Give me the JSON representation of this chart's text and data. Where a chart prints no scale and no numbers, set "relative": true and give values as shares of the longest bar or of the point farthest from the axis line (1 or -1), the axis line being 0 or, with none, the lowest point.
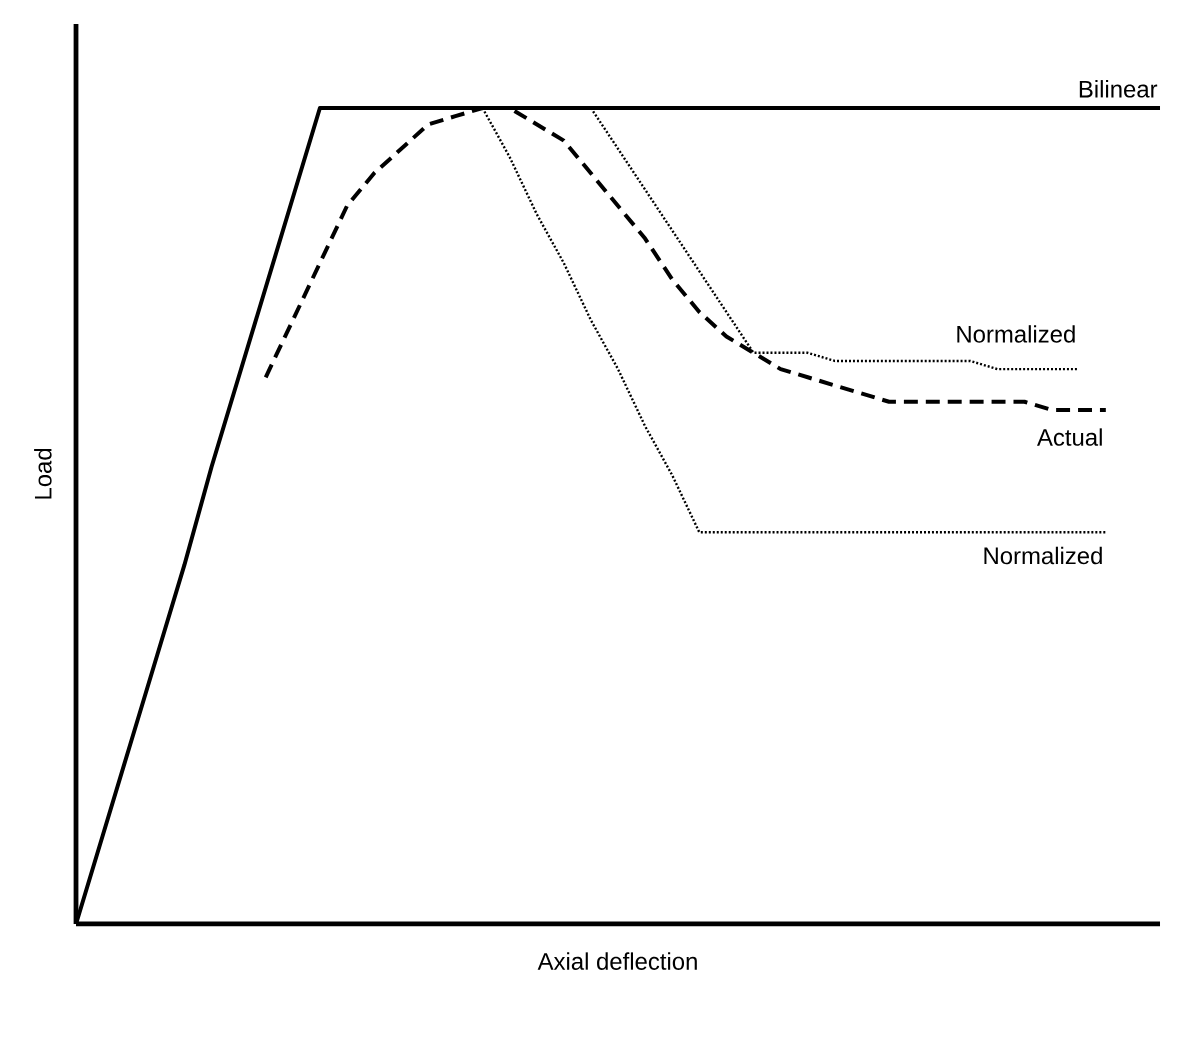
{
  "chart_data": {
    "type": "line",
    "relative": true,
    "xlabel": "Axial deflection",
    "ylabel": "Load",
    "categories": [
      null,
      null,
      null,
      null,
      null,
      null,
      null,
      null,
      null,
      null,
      null,
      null,
      null,
      null,
      null,
      null,
      null,
      null,
      null,
      null,
      null,
      null,
      null,
      null,
      null,
      null,
      null,
      null,
      null,
      null,
      null,
      null,
      null,
      null,
      null,
      null,
      null,
      null,
      null,
      null,
      null
    ],
    "series": [
      {
        "name": "Bilinear",
        "color": "#000000",
        "line_style": "solid",
        "values": [
          0,
          0.11,
          0.22,
          0.33,
          0.44,
          0.56,
          0.67,
          0.78,
          0.89,
          1,
          1,
          1,
          1,
          1,
          1,
          1,
          1,
          1,
          1,
          1,
          1,
          1,
          1,
          1,
          1,
          1,
          1,
          1,
          1,
          1,
          1,
          1,
          1,
          1,
          1,
          1,
          1,
          1,
          1,
          1,
          1
        ]
      },
      {
        "name": "Normalized",
        "color": "#000000",
        "line_style": "dotted",
        "values": [
          null,
          null,
          null,
          null,
          null,
          null,
          null,
          null,
          null,
          null,
          null,
          null,
          null,
          null,
          null,
          null,
          null,
          null,
          null,
          1,
          0.95,
          0.9,
          0.85,
          0.8,
          0.75,
          0.7,
          0.7,
          0.7,
          0.69,
          0.69,
          0.69,
          0.69,
          0.69,
          0.69,
          0.68,
          0.68,
          0.68,
          0.68,
          null,
          null,
          null
        ]
      },
      {
        "name": "Actual",
        "color": "#000000",
        "line_style": "dashed",
        "values": [
          null,
          null,
          null,
          null,
          null,
          null,
          null,
          0.67,
          0.74,
          0.81,
          0.88,
          0.92,
          0.95,
          0.98,
          0.99,
          1,
          1,
          0.98,
          0.96,
          0.92,
          0.88,
          0.84,
          0.79,
          0.75,
          0.72,
          0.7,
          0.68,
          0.67,
          0.66,
          0.65,
          0.64,
          0.64,
          0.64,
          0.64,
          0.64,
          0.64,
          0.63,
          0.63,
          0.63,
          null,
          null
        ]
      },
      {
        "name": "Normalized",
        "color": "#000000",
        "line_style": "dotted",
        "values": [
          null,
          null,
          null,
          null,
          null,
          null,
          null,
          null,
          null,
          null,
          null,
          null,
          null,
          null,
          null,
          1,
          0.94,
          0.87,
          0.81,
          0.74,
          0.68,
          0.61,
          0.55,
          0.48,
          0.48,
          0.48,
          0.48,
          0.48,
          0.48,
          0.48,
          0.48,
          0.48,
          0.48,
          0.48,
          0.48,
          0.48,
          0.48,
          0.48,
          0.48,
          null,
          null
        ]
      }
    ]
  }
}
